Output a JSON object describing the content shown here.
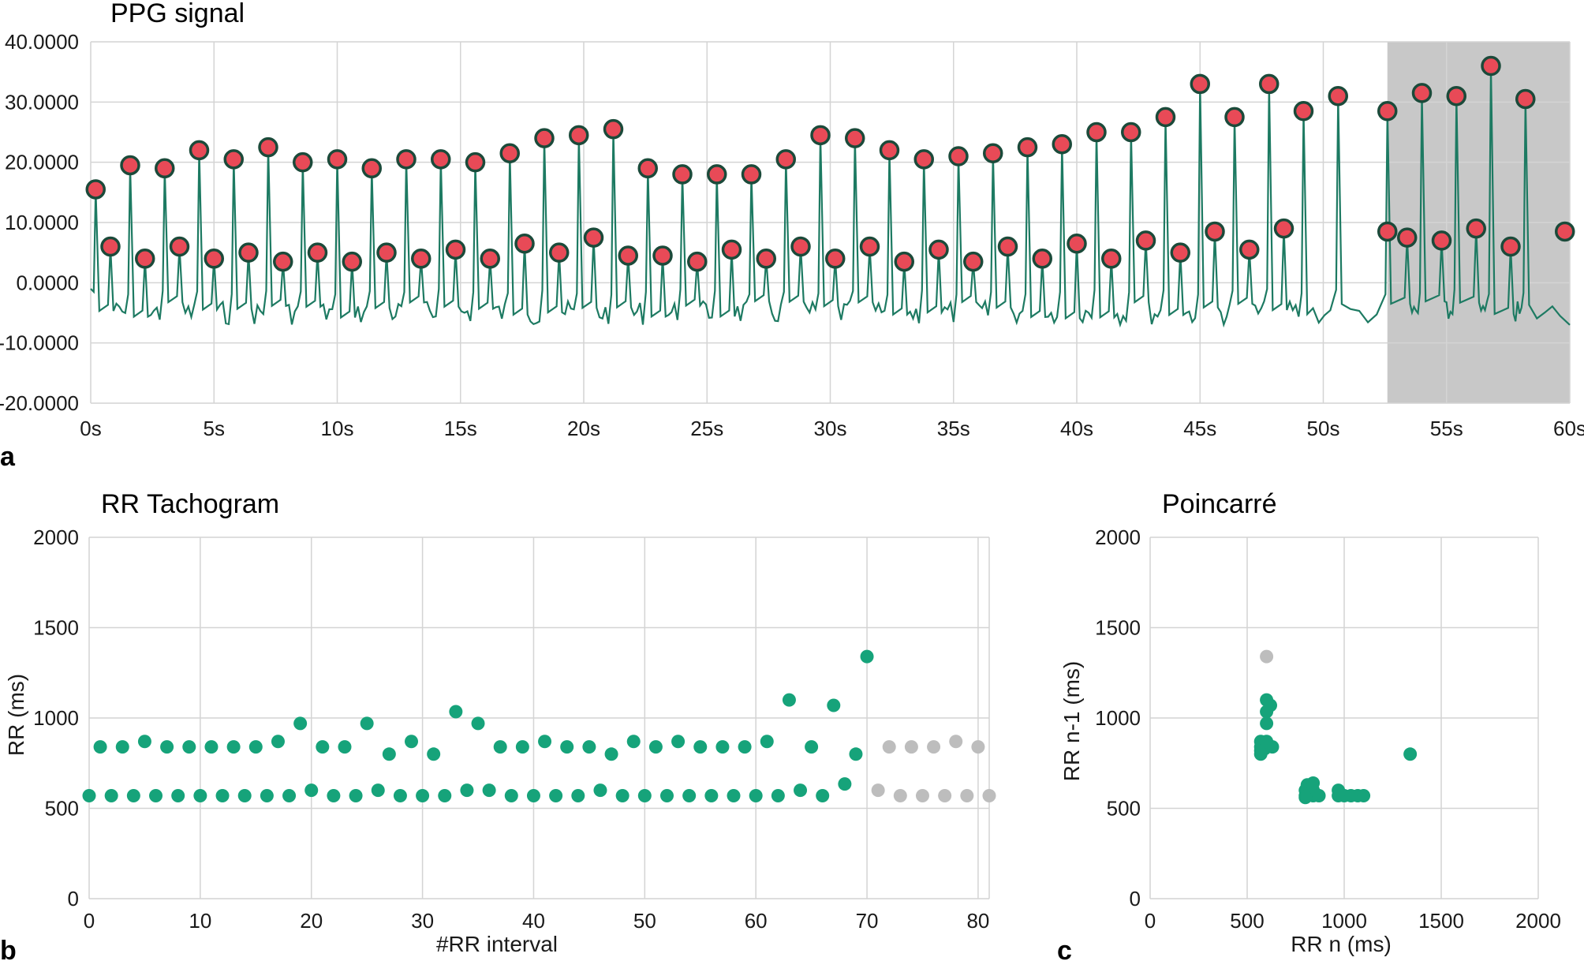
{
  "panels": {
    "a": "a",
    "b": "b",
    "c": "c"
  },
  "colors": {
    "signal": "#1d7a62",
    "green": "#16a37a",
    "gray": "#bdbdbd",
    "peak_fill": "#e84a57",
    "peak_ring": "#1b4a3a",
    "shade": "#c8c8c8"
  },
  "chart_data": [
    {
      "type": "line",
      "title": "PPG signal",
      "xlabel": "",
      "ylabel": "",
      "xlim": [
        0,
        60
      ],
      "ylim": [
        -20,
        40
      ],
      "xticks": [
        "0s",
        "5s",
        "10s",
        "15s",
        "20s",
        "25s",
        "30s",
        "35s",
        "40s",
        "45s",
        "50s",
        "55s",
        "60s"
      ],
      "yticks": [
        "-20.0000",
        "-10.0000",
        "0.0000",
        "10.0000",
        "20.0000",
        "30.0000",
        "40.0000"
      ],
      "shaded_region": [
        52.6,
        60
      ],
      "grid": true,
      "peaks": [
        [
          0.2,
          15.5
        ],
        [
          1.6,
          19.5
        ],
        [
          3,
          19
        ],
        [
          4.4,
          22
        ],
        [
          5.8,
          20.5
        ],
        [
          7.2,
          22.5
        ],
        [
          8.6,
          20
        ],
        [
          10,
          20.5
        ],
        [
          11.4,
          19
        ],
        [
          12.8,
          20.5
        ],
        [
          14.2,
          20.5
        ],
        [
          15.6,
          20
        ],
        [
          17,
          21.5
        ],
        [
          18.4,
          24
        ],
        [
          19.8,
          24.5
        ],
        [
          21.2,
          25.5
        ],
        [
          22.6,
          19
        ],
        [
          24,
          18
        ],
        [
          25.4,
          18
        ],
        [
          26.8,
          18
        ],
        [
          28.2,
          20.5
        ],
        [
          29.6,
          24.5
        ],
        [
          31,
          24
        ],
        [
          32.4,
          22
        ],
        [
          33.8,
          20.5
        ],
        [
          35.2,
          21
        ],
        [
          36.6,
          21.5
        ],
        [
          38,
          22.5
        ],
        [
          39.4,
          23
        ],
        [
          40.8,
          25
        ],
        [
          42.2,
          25
        ],
        [
          43.6,
          27.5
        ],
        [
          45,
          33
        ],
        [
          46.4,
          27.5
        ],
        [
          47.8,
          33
        ],
        [
          49.2,
          28.5
        ],
        [
          50.6,
          31
        ],
        [
          52.6,
          28.5
        ],
        [
          54,
          31.5
        ],
        [
          55.4,
          31
        ],
        [
          56.8,
          36
        ],
        [
          58.2,
          30.5
        ]
      ],
      "troughs": [
        [
          0.8,
          6
        ],
        [
          2.2,
          4
        ],
        [
          3.6,
          6
        ],
        [
          5,
          4
        ],
        [
          6.4,
          5
        ],
        [
          7.8,
          3.5
        ],
        [
          9.2,
          5
        ],
        [
          10.6,
          3.5
        ],
        [
          12,
          5
        ],
        [
          13.4,
          4
        ],
        [
          14.8,
          5.5
        ],
        [
          16.2,
          4
        ],
        [
          17.6,
          6.5
        ],
        [
          19,
          5
        ],
        [
          20.4,
          7.5
        ],
        [
          21.8,
          4.5
        ],
        [
          23.2,
          4.5
        ],
        [
          24.6,
          3.5
        ],
        [
          26,
          5.5
        ],
        [
          27.4,
          4
        ],
        [
          28.8,
          6
        ],
        [
          30.2,
          4
        ],
        [
          31.6,
          6
        ],
        [
          33,
          3.5
        ],
        [
          34.4,
          5.5
        ],
        [
          35.8,
          3.5
        ],
        [
          37.2,
          6
        ],
        [
          38.6,
          4
        ],
        [
          40,
          6.5
        ],
        [
          41.4,
          4
        ],
        [
          42.8,
          7
        ],
        [
          44.2,
          5
        ],
        [
          45.6,
          8.5
        ],
        [
          47,
          5.5
        ],
        [
          48.4,
          9
        ],
        [
          52.6,
          8.5
        ],
        [
          53.4,
          7.5
        ],
        [
          54.8,
          7
        ],
        [
          56.2,
          9
        ],
        [
          57.6,
          6
        ],
        [
          59.8,
          8.5
        ]
      ]
    },
    {
      "type": "scatter",
      "title": "RR Tachogram",
      "xlabel": "#RR interval",
      "ylabel": "RR (ms)",
      "xlim": [
        0,
        81
      ],
      "ylim": [
        0,
        2000
      ],
      "xticks": [
        "0",
        "10",
        "20",
        "30",
        "40",
        "50",
        "60",
        "70",
        "80"
      ],
      "yticks": [
        "0",
        "500",
        "1000",
        "1500",
        "2000"
      ],
      "grid": true,
      "series": [
        {
          "color": "green",
          "points": [
            [
              0,
              570
            ],
            [
              1,
              840
            ],
            [
              2,
              570
            ],
            [
              3,
              840
            ],
            [
              4,
              570
            ],
            [
              5,
              870
            ],
            [
              6,
              570
            ],
            [
              7,
              840
            ],
            [
              8,
              570
            ],
            [
              9,
              840
            ],
            [
              10,
              570
            ],
            [
              11,
              840
            ],
            [
              12,
              570
            ],
            [
              13,
              840
            ],
            [
              14,
              570
            ],
            [
              15,
              840
            ],
            [
              16,
              570
            ],
            [
              17,
              870
            ],
            [
              18,
              570
            ],
            [
              19,
              970
            ],
            [
              20,
              600
            ],
            [
              21,
              840
            ],
            [
              22,
              570
            ],
            [
              23,
              840
            ],
            [
              24,
              570
            ],
            [
              25,
              970
            ],
            [
              26,
              600
            ],
            [
              27,
              800
            ],
            [
              28,
              570
            ],
            [
              29,
              870
            ],
            [
              30,
              570
            ],
            [
              31,
              800
            ],
            [
              32,
              570
            ],
            [
              33,
              1035
            ],
            [
              34,
              600
            ],
            [
              35,
              970
            ],
            [
              36,
              600
            ],
            [
              37,
              840
            ],
            [
              38,
              570
            ],
            [
              39,
              840
            ],
            [
              40,
              570
            ],
            [
              41,
              870
            ],
            [
              42,
              570
            ],
            [
              43,
              840
            ],
            [
              44,
              570
            ],
            [
              45,
              840
            ],
            [
              46,
              600
            ],
            [
              47,
              800
            ],
            [
              48,
              570
            ],
            [
              49,
              870
            ],
            [
              50,
              570
            ],
            [
              51,
              840
            ],
            [
              52,
              570
            ],
            [
              53,
              870
            ],
            [
              54,
              570
            ],
            [
              55,
              840
            ],
            [
              56,
              570
            ],
            [
              57,
              840
            ],
            [
              58,
              570
            ],
            [
              59,
              840
            ],
            [
              60,
              570
            ],
            [
              61,
              870
            ],
            [
              62,
              570
            ],
            [
              63,
              1100
            ],
            [
              64,
              600
            ],
            [
              65,
              840
            ],
            [
              66,
              570
            ],
            [
              67,
              1070
            ],
            [
              68,
              635
            ],
            [
              69,
              800
            ],
            [
              70,
              1340
            ]
          ]
        },
        {
          "color": "gray",
          "points": [
            [
              71,
              600
            ],
            [
              72,
              840
            ],
            [
              73,
              570
            ],
            [
              74,
              840
            ],
            [
              75,
              570
            ],
            [
              76,
              840
            ],
            [
              77,
              570
            ],
            [
              78,
              870
            ],
            [
              79,
              570
            ],
            [
              80,
              840
            ],
            [
              81,
              570
            ]
          ]
        }
      ]
    },
    {
      "type": "scatter",
      "title": "Poincarré",
      "xlabel": "RR n (ms)",
      "ylabel": "RR n-1 (ms)",
      "xlim": [
        0,
        2000
      ],
      "ylim": [
        0,
        2000
      ],
      "xticks": [
        "0",
        "500",
        "1000",
        "1500",
        "2000"
      ],
      "yticks": [
        "0",
        "500",
        "1000",
        "1500",
        "2000"
      ],
      "grid": true,
      "series": [
        {
          "color": "gray",
          "points": [
            [
              600,
              1340
            ],
            [
              870,
              570
            ],
            [
              840,
              570
            ],
            [
              840,
              600
            ]
          ]
        },
        {
          "color": "green",
          "points": [
            [
              570,
              840
            ],
            [
              570,
              870
            ],
            [
              570,
              800
            ],
            [
              570,
              820
            ],
            [
              580,
              850
            ],
            [
              590,
              830
            ],
            [
              600,
              840
            ],
            [
              600,
              970
            ],
            [
              600,
              1035
            ],
            [
              600,
              1100
            ],
            [
              620,
              1070
            ],
            [
              630,
              840
            ],
            [
              600,
              870
            ],
            [
              800,
              570
            ],
            [
              800,
              600
            ],
            [
              810,
              630
            ],
            [
              820,
              580
            ],
            [
              840,
              570
            ],
            [
              840,
              600
            ],
            [
              850,
              580
            ],
            [
              870,
              570
            ],
            [
              840,
              640
            ],
            [
              800,
              560
            ],
            [
              970,
              570
            ],
            [
              970,
              600
            ],
            [
              1000,
              570
            ],
            [
              1035,
              570
            ],
            [
              1070,
              570
            ],
            [
              1100,
              570
            ],
            [
              1340,
              800
            ]
          ]
        }
      ]
    }
  ]
}
